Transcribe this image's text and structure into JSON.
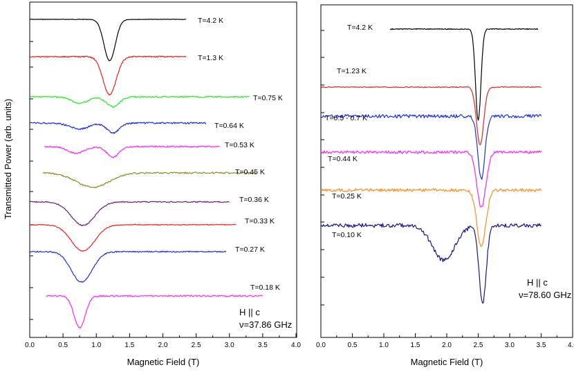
{
  "figure": {
    "ylabel": "Transmitted Power (arb. units)"
  },
  "chart_data": [
    {
      "type": "line",
      "title": "",
      "xlabel": "Magnetic Field (T)",
      "ylabel": "Transmitted Power (arb. units)",
      "xlim": [
        0.0,
        4.0
      ],
      "xticks": [
        "0.0",
        "0.5",
        "1.0",
        "1.5",
        "2.0",
        "2.5",
        "3.0",
        "3.5",
        "4.0"
      ],
      "annotation": {
        "field": "H || c",
        "frequency": "ν=37.86 GHz"
      },
      "series": [
        {
          "name": "T=4.2 K",
          "color": "#000000",
          "x_range": [
            0.0,
            2.35
          ],
          "dips": [
            [
              1.2,
              1.0,
              0.12
            ]
          ]
        },
        {
          "name": "T=1.3 K",
          "color": "#e8211c",
          "x_range": [
            0.0,
            2.35
          ],
          "dips": [
            [
              1.2,
              1.0,
              0.14
            ]
          ]
        },
        {
          "name": "T=0.75 K",
          "color": "#21e821",
          "x_range": [
            0.0,
            3.3
          ],
          "dips": [
            [
              1.25,
              0.55,
              0.14
            ],
            [
              0.75,
              0.35,
              0.18
            ]
          ]
        },
        {
          "name": "T=0.64 K",
          "color": "#1c2ee8",
          "x_range": [
            0.0,
            2.65
          ],
          "dips": [
            [
              1.25,
              0.6,
              0.13
            ],
            [
              0.75,
              0.35,
              0.2
            ]
          ]
        },
        {
          "name": "T=0.53 K",
          "color": "#ff22ff",
          "x_range": [
            0.22,
            2.85
          ],
          "dips": [
            [
              1.25,
              0.55,
              0.13
            ],
            [
              0.7,
              0.35,
              0.18
            ]
          ]
        },
        {
          "name": "T=0.45 K",
          "color": "#8c8c22",
          "x_range": [
            0.2,
            3.4
          ],
          "dips": [
            [
              0.95,
              0.8,
              0.35
            ]
          ]
        },
        {
          "name": "T=0.36 K",
          "color": "#6e1c7a",
          "x_range": [
            0.0,
            3.0
          ],
          "dips": [
            [
              0.8,
              1.0,
              0.25
            ]
          ]
        },
        {
          "name": "T=0.33 K",
          "color": "#e8211c",
          "x_range": [
            0.0,
            3.1
          ],
          "dips": [
            [
              0.8,
              1.0,
              0.25
            ]
          ]
        },
        {
          "name": "T=0.27 K",
          "color": "#1c2ee8",
          "x_range": [
            0.0,
            2.95
          ],
          "dips": [
            [
              0.78,
              1.0,
              0.22
            ]
          ]
        },
        {
          "name": "T=0.18 K",
          "color": "#ff22ff",
          "x_range": [
            0.25,
            3.5
          ],
          "dips": [
            [
              0.75,
              1.0,
              0.12
            ]
          ]
        }
      ]
    },
    {
      "type": "line",
      "title": "",
      "xlabel": "Magnetic Field (T)",
      "ylabel": "",
      "xlim": [
        0.0,
        4.0
      ],
      "xticks": [
        "0.0",
        "0.5",
        "1.0",
        "1.5",
        "2.0",
        "2.5",
        "3.0",
        "3.5",
        "4.0"
      ],
      "annotation": {
        "field": "H || c",
        "frequency": "ν=78.60 GHz"
      },
      "series": [
        {
          "name": "T=4.2 K",
          "color": "#000000",
          "x_range": [
            1.1,
            3.45
          ],
          "dips": [
            [
              2.5,
              1.0,
              0.06
            ]
          ]
        },
        {
          "name": "T=1.23 K",
          "color": "#e8211c",
          "x_range": [
            0.0,
            3.5
          ],
          "dips": [
            [
              2.53,
              1.0,
              0.08
            ]
          ]
        },
        {
          "name": "T=0.5 - 0.7 K",
          "color": "#1c2ee8",
          "x_range": [
            0.0,
            3.5
          ],
          "dips": [
            [
              2.55,
              1.0,
              0.08
            ]
          ]
        },
        {
          "name": "T=0.44 K",
          "color": "#ff22ff",
          "x_range": [
            0.0,
            3.5
          ],
          "dips": [
            [
              2.55,
              1.0,
              0.1
            ]
          ]
        },
        {
          "name": "T=0.25 K",
          "color": "#ff8c1c",
          "x_range": [
            0.0,
            3.5
          ],
          "dips": [
            [
              2.55,
              1.0,
              0.1
            ]
          ]
        },
        {
          "name": "T=0.10 K",
          "color": "#14148c",
          "x_range": [
            0.0,
            3.5
          ],
          "dips": [
            [
              2.57,
              1.0,
              0.08
            ],
            [
              1.95,
              0.45,
              0.25
            ]
          ]
        }
      ]
    }
  ]
}
